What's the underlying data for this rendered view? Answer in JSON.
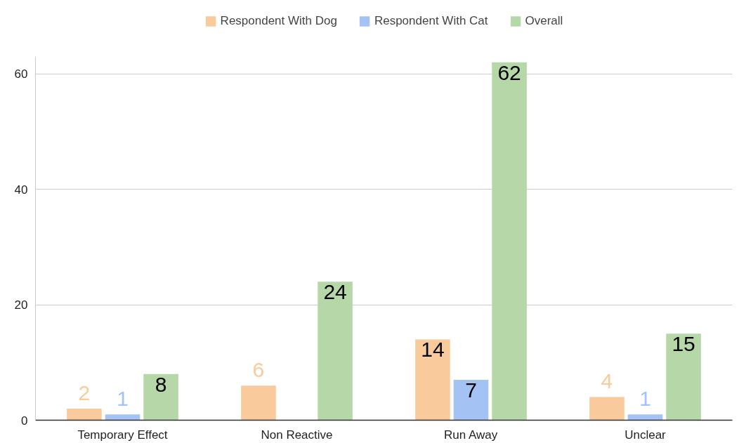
{
  "chart_data": {
    "type": "bar",
    "categories": [
      "Temporary Effect",
      "Non Reactive",
      "Run Away",
      "Unclear"
    ],
    "series": [
      {
        "name": "Respondent With Dog",
        "color": "#f9cb9c",
        "values": [
          2,
          6,
          14,
          4
        ]
      },
      {
        "name": "Respondent With Cat",
        "color": "#a4c2f4",
        "values": [
          1,
          null,
          7,
          1
        ]
      },
      {
        "name": "Overall",
        "color": "#b6d7a8",
        "values": [
          8,
          24,
          62,
          15
        ]
      }
    ],
    "ylim": [
      0,
      63
    ],
    "yticks": [
      0,
      20,
      40,
      60
    ],
    "grid": "y",
    "legend": "top",
    "data_labels": true
  }
}
